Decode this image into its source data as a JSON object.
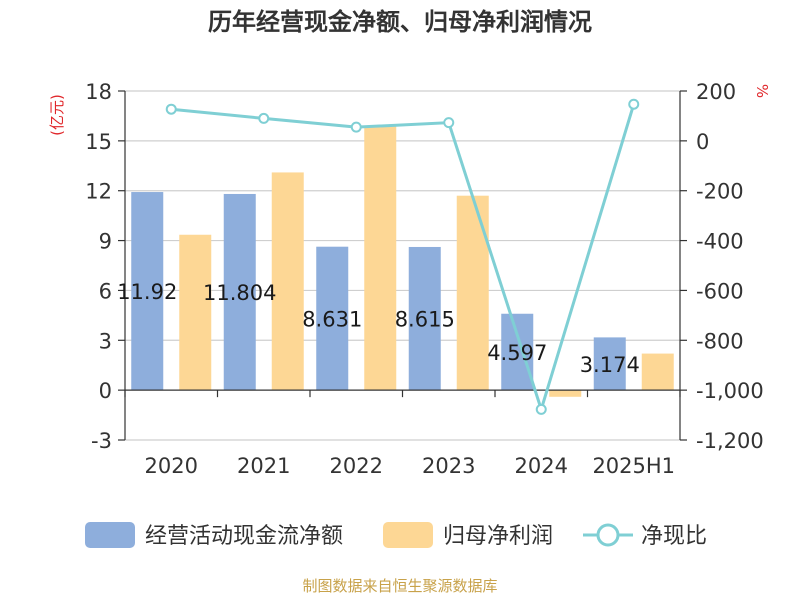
{
  "chart_data": {
    "type": "bar",
    "title": "历年经营现金净额、归母净利润情况",
    "categories": [
      "2020",
      "2021",
      "2022",
      "2023",
      "2024",
      "2025H1"
    ],
    "ylabel": "(亿元)",
    "y2label": "%",
    "ylim": [
      -3,
      18
    ],
    "yticks": [
      "18",
      "15",
      "12",
      "9",
      "6",
      "3",
      "0",
      "-3"
    ],
    "y2lim": [
      -1200,
      200
    ],
    "y2ticks": [
      "200",
      "0",
      "-200",
      "-400",
      "-600",
      "-800",
      "-1,000",
      "-1,200"
    ],
    "grid": true,
    "legend_position": "bottom",
    "series": [
      {
        "name": "经营活动现金流净额",
        "kind": "bar",
        "axis": "left",
        "color": "#8eaedc",
        "values": [
          11.92,
          11.804,
          8.631,
          8.615,
          4.597,
          3.174
        ],
        "labels": [
          "11.92",
          "11.804",
          "8.631",
          "8.615",
          "4.597",
          "3.174"
        ]
      },
      {
        "name": "归母净利润",
        "kind": "bar",
        "axis": "left",
        "color": "#fdd795",
        "values": [
          9.35,
          13.1,
          15.9,
          11.7,
          -0.4,
          2.2
        ]
      },
      {
        "name": "净现比",
        "kind": "line",
        "axis": "right",
        "color": "#7fcfd4",
        "values": [
          127,
          90,
          55,
          73,
          -1077,
          147
        ]
      }
    ]
  },
  "footer": {
    "source": "制图数据来自恒生聚源数据库"
  }
}
